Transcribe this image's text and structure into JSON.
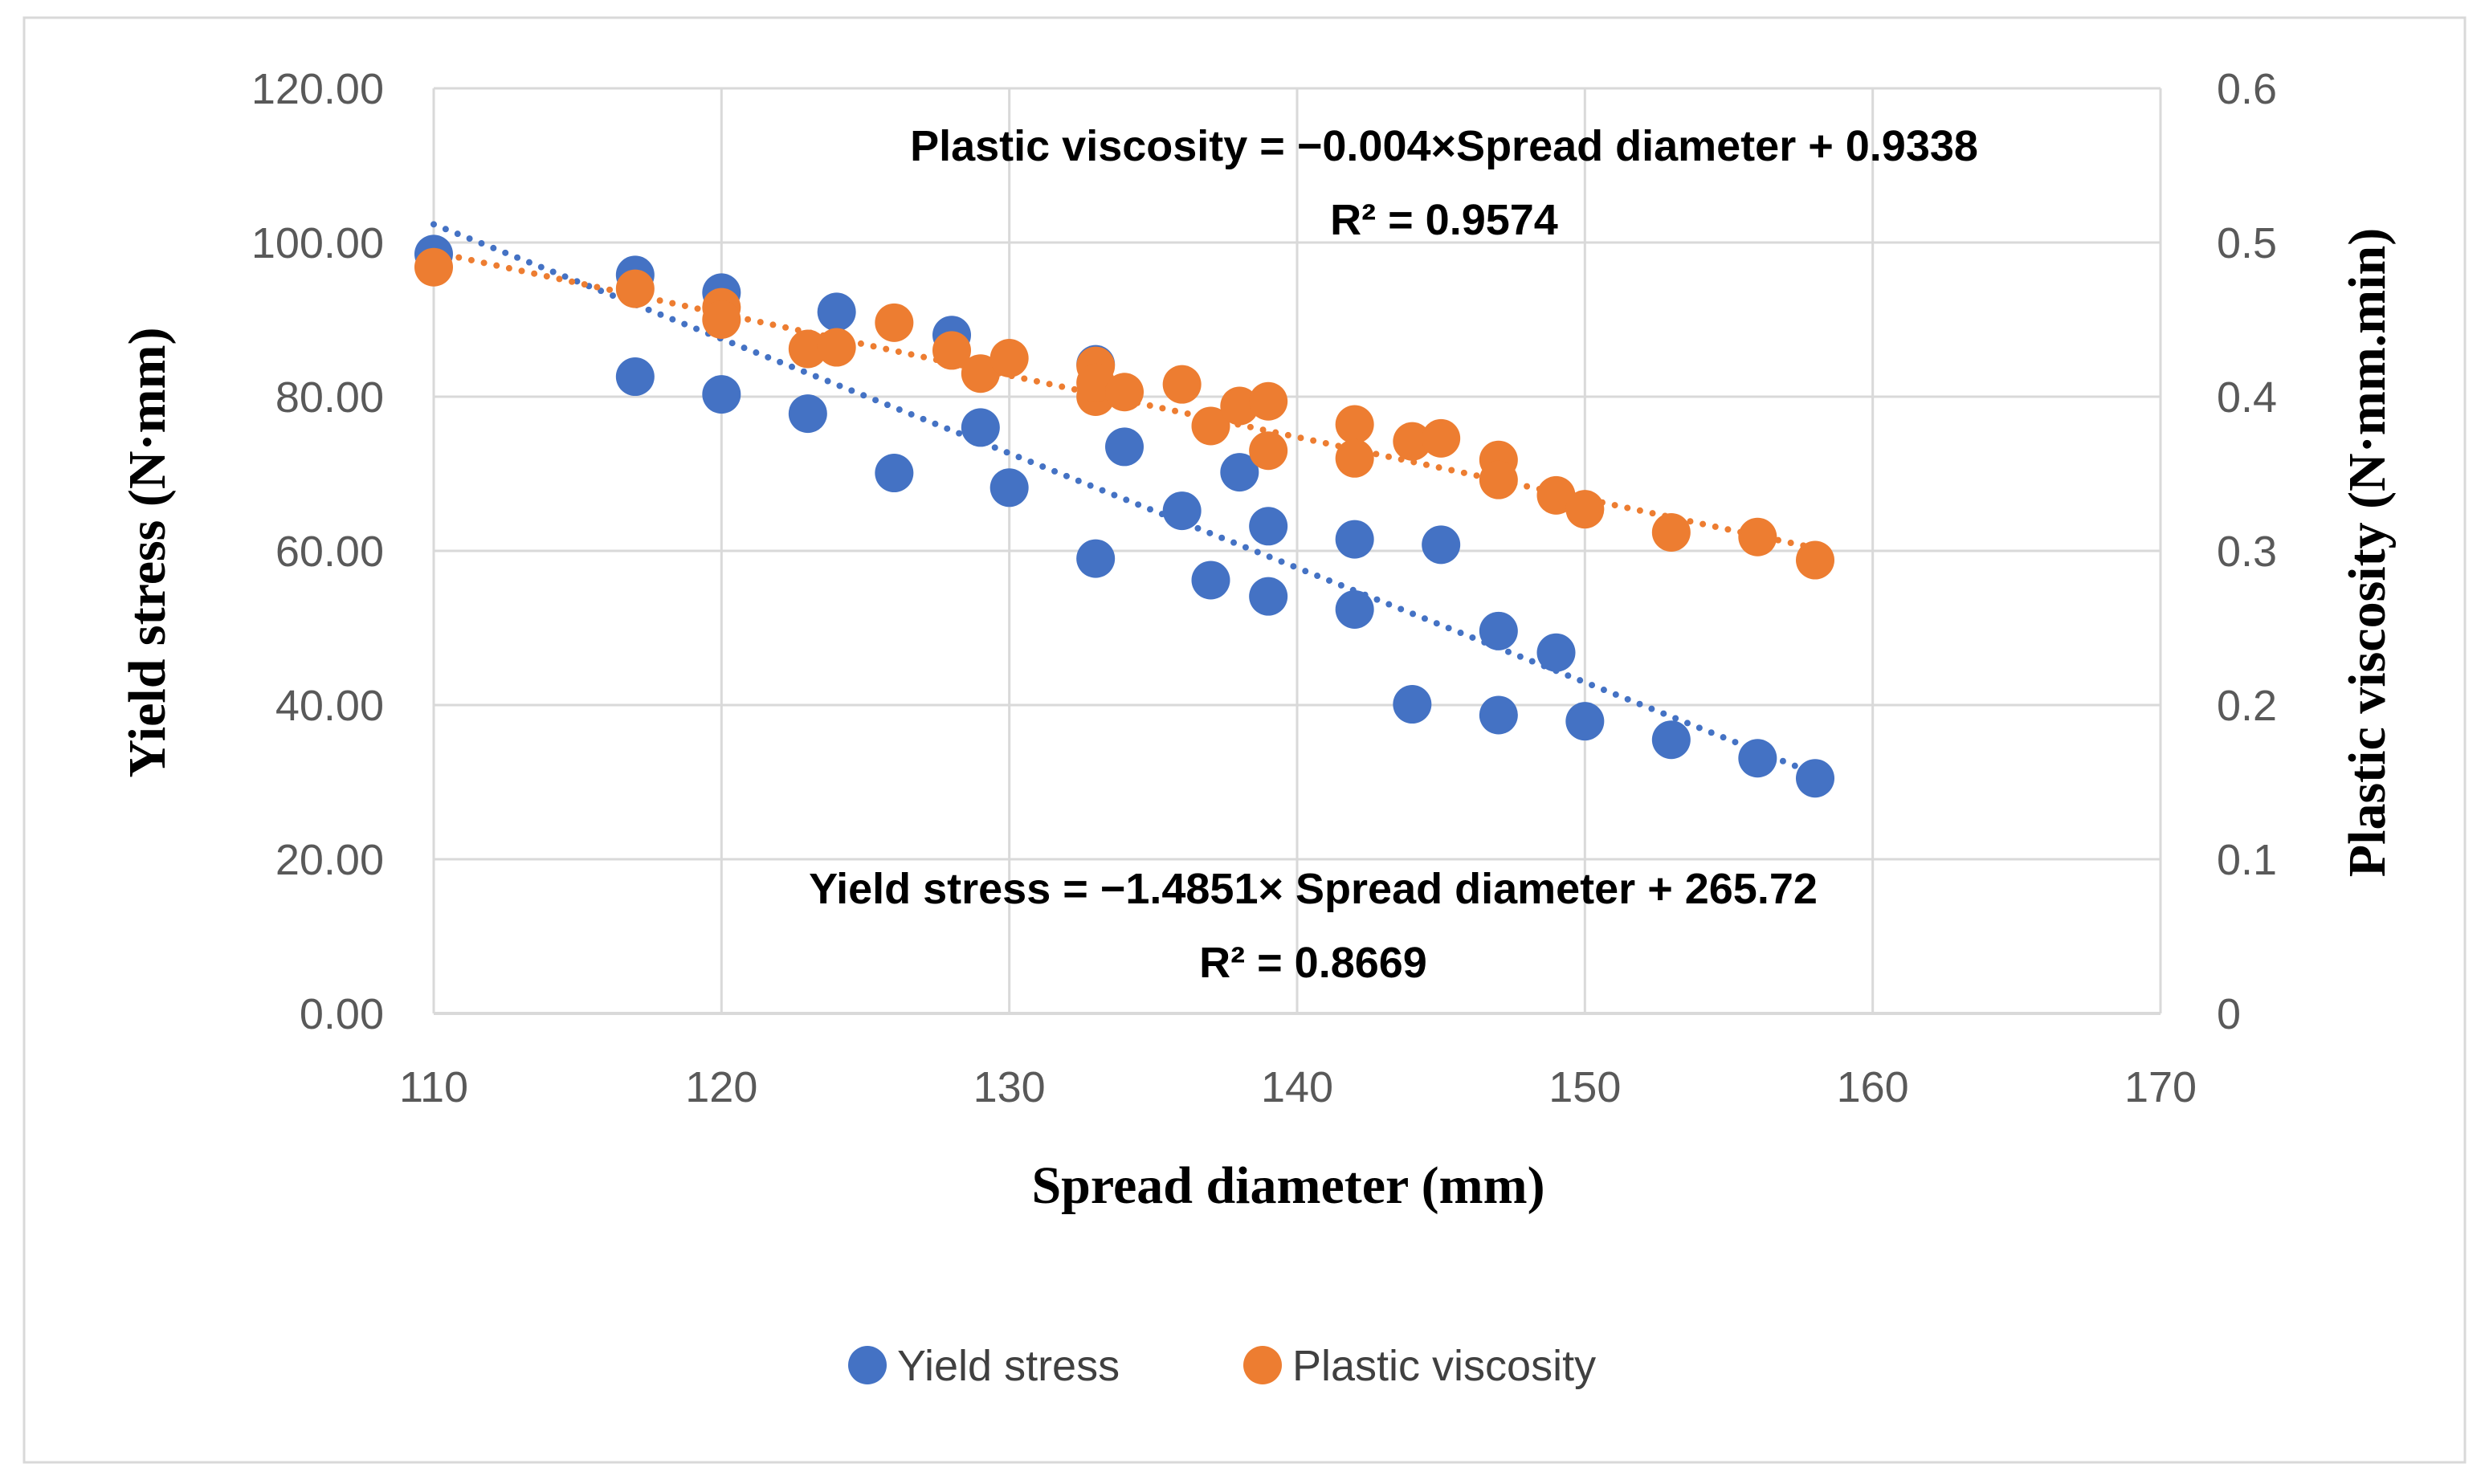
{
  "chart_data": {
    "type": "scatter",
    "x_label": "Spread diameter (mm)",
    "y_label": "Yield stress (N·mm)",
    "y2_label": "Plastic viscosity (N·mm.min)",
    "x_range": [
      110,
      170
    ],
    "y_range": [
      0,
      120
    ],
    "y2_range": [
      0,
      0.6
    ],
    "x_ticks": [
      "110",
      "120",
      "130",
      "140",
      "150",
      "160",
      "170"
    ],
    "y_ticks": [
      "0.00",
      "20.00",
      "40.00",
      "60.00",
      "80.00",
      "100.00",
      "120.00"
    ],
    "y2_ticks": [
      "0",
      "0.1",
      "0.2",
      "0.3",
      "0.4",
      "0.5",
      "0.6"
    ],
    "grid": true,
    "legend_position": "bottom",
    "series": [
      {
        "name": "Yield stress",
        "axis": "left",
        "color": "#4472C4",
        "x": [
          110,
          117,
          117,
          120,
          120,
          123,
          124,
          126,
          128,
          129,
          130,
          133,
          133,
          134,
          136,
          137,
          138,
          139,
          139,
          142,
          142,
          144,
          145,
          147,
          147,
          149,
          150,
          153,
          156,
          158
        ],
        "y": [
          98.5,
          95.8,
          82.6,
          93.5,
          80.3,
          77.8,
          91.0,
          70.1,
          88.0,
          76.0,
          68.2,
          84.2,
          59.0,
          73.5,
          65.2,
          56.2,
          70.2,
          63.2,
          54.1,
          61.5,
          52.4,
          40.1,
          60.8,
          49.6,
          38.7,
          46.8,
          37.9,
          35.5,
          33.1,
          30.5
        ],
        "trendline": {
          "slope": -1.4851,
          "intercept": 265.72,
          "x_range": [
            110,
            158
          ],
          "equation": "Yield stress = −1.4851× Spread diameter + 265.72",
          "r_squared": "R² = 0.8669"
        }
      },
      {
        "name": "Plastic viscosity",
        "axis": "right",
        "color": "#ED7D31",
        "x": [
          110,
          117,
          120,
          120,
          123,
          124,
          126,
          128,
          129,
          130,
          133,
          133,
          133,
          134,
          136,
          137,
          138,
          139,
          139,
          142,
          142,
          144,
          145,
          147,
          147,
          149,
          150,
          153,
          156,
          158
        ],
        "y": [
          0.484,
          0.47,
          0.458,
          0.45,
          0.431,
          0.432,
          0.448,
          0.43,
          0.415,
          0.425,
          0.42,
          0.4,
          0.409,
          0.403,
          0.408,
          0.381,
          0.394,
          0.397,
          0.365,
          0.382,
          0.36,
          0.371,
          0.373,
          0.359,
          0.346,
          0.336,
          0.327,
          0.312,
          0.309,
          0.294
        ],
        "trendline": {
          "slope": -0.004,
          "intercept": 0.9338,
          "x_range": [
            110,
            158
          ],
          "equation": "Plastic viscosity = −0.004×Spread diameter + 0.9338",
          "r_squared": "R² = 0.9574"
        }
      }
    ]
  }
}
